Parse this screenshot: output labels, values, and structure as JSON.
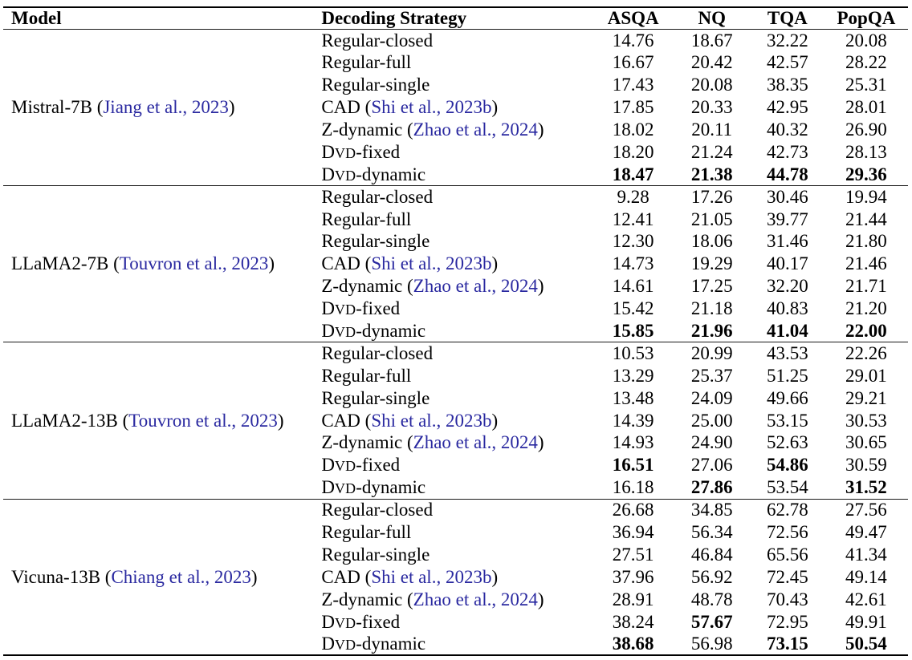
{
  "colors": {
    "citation_blue": "#2a29a0",
    "text": "#000000",
    "rule": "#000000"
  },
  "table": {
    "columns": [
      "Model",
      "Decoding Strategy",
      "ASQA",
      "NQ",
      "TQA",
      "PopQA"
    ],
    "groups": [
      {
        "model": {
          "pre": "Mistral-7B (",
          "cite": "Jiang et al., 2023",
          "post": ")"
        },
        "rows": [
          {
            "strategy": {
              "t1": "Regular-closed"
            },
            "values": [
              "14.76",
              "18.67",
              "32.22",
              "20.08"
            ],
            "bold": []
          },
          {
            "strategy": {
              "t1": "Regular-full"
            },
            "values": [
              "16.67",
              "20.42",
              "42.57",
              "28.22"
            ],
            "bold": []
          },
          {
            "strategy": {
              "t1": "Regular-single"
            },
            "values": [
              "17.43",
              "20.08",
              "38.35",
              "25.31"
            ],
            "bold": []
          },
          {
            "strategy": {
              "t1": "CAD (",
              "cite": "Shi et al., 2023b",
              "t3": ")"
            },
            "values": [
              "17.85",
              "20.33",
              "42.95",
              "28.01"
            ],
            "bold": []
          },
          {
            "strategy": {
              "t1": "Z-dynamic (",
              "cite": "Zhao et al., 2024",
              "t3": ")"
            },
            "values": [
              "18.02",
              "20.11",
              "40.32",
              "26.90"
            ],
            "bold": []
          },
          {
            "strategy": {
              "t1": "D",
              "sc": "VD",
              "t2": "-fixed"
            },
            "values": [
              "18.20",
              "21.24",
              "42.73",
              "28.13"
            ],
            "bold": []
          },
          {
            "strategy": {
              "t1": "D",
              "sc": "VD",
              "t2": "-dynamic"
            },
            "values": [
              "18.47",
              "21.38",
              "44.78",
              "29.36"
            ],
            "bold": [
              0,
              1,
              2,
              3
            ]
          }
        ]
      },
      {
        "model": {
          "pre": "LLaMA2-7B (",
          "cite": "Touvron et al., 2023",
          "post": ")"
        },
        "rows": [
          {
            "strategy": {
              "t1": "Regular-closed"
            },
            "values": [
              "9.28",
              "17.26",
              "30.46",
              "19.94"
            ],
            "bold": []
          },
          {
            "strategy": {
              "t1": "Regular-full"
            },
            "values": [
              "12.41",
              "21.05",
              "39.77",
              "21.44"
            ],
            "bold": []
          },
          {
            "strategy": {
              "t1": "Regular-single"
            },
            "values": [
              "12.30",
              "18.06",
              "31.46",
              "21.80"
            ],
            "bold": []
          },
          {
            "strategy": {
              "t1": "CAD (",
              "cite": "Shi et al., 2023b",
              "t3": ")"
            },
            "values": [
              "14.73",
              "19.29",
              "40.17",
              "21.46"
            ],
            "bold": []
          },
          {
            "strategy": {
              "t1": "Z-dynamic (",
              "cite": "Zhao et al., 2024",
              "t3": ")"
            },
            "values": [
              "14.61",
              "17.25",
              "32.20",
              "21.71"
            ],
            "bold": []
          },
          {
            "strategy": {
              "t1": "D",
              "sc": "VD",
              "t2": "-fixed"
            },
            "values": [
              "15.42",
              "21.18",
              "40.83",
              "21.20"
            ],
            "bold": []
          },
          {
            "strategy": {
              "t1": "D",
              "sc": "VD",
              "t2": "-dynamic"
            },
            "values": [
              "15.85",
              "21.96",
              "41.04",
              "22.00"
            ],
            "bold": [
              0,
              1,
              2,
              3
            ]
          }
        ]
      },
      {
        "model": {
          "pre": "LLaMA2-13B (",
          "cite": "Touvron et al., 2023",
          "post": ")"
        },
        "rows": [
          {
            "strategy": {
              "t1": "Regular-closed"
            },
            "values": [
              "10.53",
              "20.99",
              "43.53",
              "22.26"
            ],
            "bold": []
          },
          {
            "strategy": {
              "t1": "Regular-full"
            },
            "values": [
              "13.29",
              "25.37",
              "51.25",
              "29.01"
            ],
            "bold": []
          },
          {
            "strategy": {
              "t1": "Regular-single"
            },
            "values": [
              "13.48",
              "24.09",
              "49.66",
              "29.21"
            ],
            "bold": []
          },
          {
            "strategy": {
              "t1": "CAD (",
              "cite": "Shi et al., 2023b",
              "t3": ")"
            },
            "values": [
              "14.39",
              "25.00",
              "53.15",
              "30.53"
            ],
            "bold": []
          },
          {
            "strategy": {
              "t1": "Z-dynamic (",
              "cite": "Zhao et al., 2024",
              "t3": ")"
            },
            "values": [
              "14.93",
              "24.90",
              "52.63",
              "30.65"
            ],
            "bold": []
          },
          {
            "strategy": {
              "t1": "D",
              "sc": "VD",
              "t2": "-fixed"
            },
            "values": [
              "16.51",
              "27.06",
              "54.86",
              "30.59"
            ],
            "bold": [
              0,
              2
            ]
          },
          {
            "strategy": {
              "t1": "D",
              "sc": "VD",
              "t2": "-dynamic"
            },
            "values": [
              "16.18",
              "27.86",
              "53.54",
              "31.52"
            ],
            "bold": [
              1,
              3
            ]
          }
        ]
      },
      {
        "model": {
          "pre": "Vicuna-13B (",
          "cite": "Chiang et al., 2023",
          "post": ")"
        },
        "rows": [
          {
            "strategy": {
              "t1": "Regular-closed"
            },
            "values": [
              "26.68",
              "34.85",
              "62.78",
              "27.56"
            ],
            "bold": []
          },
          {
            "strategy": {
              "t1": "Regular-full"
            },
            "values": [
              "36.94",
              "56.34",
              "72.56",
              "49.47"
            ],
            "bold": []
          },
          {
            "strategy": {
              "t1": "Regular-single"
            },
            "values": [
              "27.51",
              "46.84",
              "65.56",
              "41.34"
            ],
            "bold": []
          },
          {
            "strategy": {
              "t1": "CAD (",
              "cite": "Shi et al., 2023b",
              "t3": ")"
            },
            "values": [
              "37.96",
              "56.92",
              "72.45",
              "49.14"
            ],
            "bold": []
          },
          {
            "strategy": {
              "t1": "Z-dynamic (",
              "cite": "Zhao et al., 2024",
              "t3": ")"
            },
            "values": [
              "28.91",
              "48.78",
              "70.43",
              "42.61"
            ],
            "bold": []
          },
          {
            "strategy": {
              "t1": "D",
              "sc": "VD",
              "t2": "-fixed"
            },
            "values": [
              "38.24",
              "57.67",
              "72.95",
              "49.91"
            ],
            "bold": [
              1
            ]
          },
          {
            "strategy": {
              "t1": "D",
              "sc": "VD",
              "t2": "-dynamic"
            },
            "values": [
              "38.68",
              "56.98",
              "73.15",
              "50.54"
            ],
            "bold": [
              0,
              2,
              3
            ]
          }
        ]
      }
    ]
  }
}
